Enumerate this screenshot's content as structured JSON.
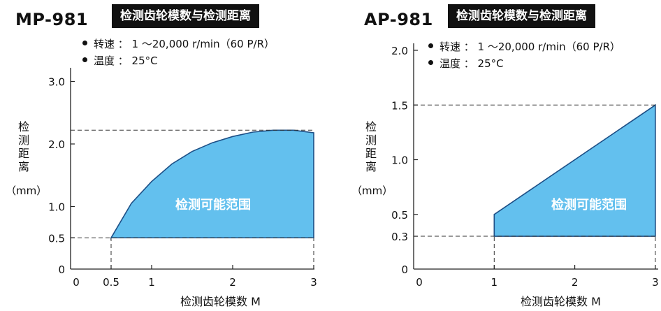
{
  "colors": {
    "fill": "#63c0ee",
    "stroke": "#1d4f86",
    "axis": "#222222",
    "title_bg": "#111111",
    "region_text": "#ffffff"
  },
  "chart_data": [
    {
      "type": "area",
      "model": "MP-981",
      "title": "检测齿轮模数与检测距离",
      "conditions": [
        "转速 ： 1 〜20,000 r/min（60 P/R）",
        "温度 ： 25°C"
      ],
      "ylabel": "检测距离",
      "yunit": "（mm）",
      "xlabel": "检测齿轮模数  M",
      "region_label": "检测可能范围",
      "xlim": [
        0,
        3
      ],
      "ylim": [
        0,
        3.0
      ],
      "x_ticks": [
        0,
        0.5,
        1,
        2,
        3
      ],
      "x_tick_labels": [
        "0",
        "0.5",
        "1",
        "2",
        "3"
      ],
      "y_ticks": [
        0,
        0.5,
        1.0,
        2.0,
        3.0
      ],
      "y_tick_labels": [
        "0",
        "0.5",
        "1.0",
        "2.0",
        "3.0"
      ],
      "region": {
        "x_min": 0.5,
        "x_max": 3,
        "y_min": 0.5,
        "upper": [
          [
            0.5,
            0.5
          ],
          [
            0.75,
            1.05
          ],
          [
            1,
            1.4
          ],
          [
            1.25,
            1.68
          ],
          [
            1.5,
            1.88
          ],
          [
            1.75,
            2.02
          ],
          [
            2,
            2.12
          ],
          [
            2.25,
            2.19
          ],
          [
            2.5,
            2.22
          ],
          [
            2.75,
            2.22
          ],
          [
            3,
            2.18
          ]
        ]
      },
      "dashed_y": [
        0.5,
        2.22
      ],
      "dashed_x": [
        0.5,
        3
      ]
    },
    {
      "type": "area",
      "model": "AP-981",
      "title": "检测齿轮模数与检测距离",
      "conditions": [
        "转速 ： 1 〜20,000 r/min（60 P/R）",
        "温度 ： 25°C"
      ],
      "ylabel": "检测距离",
      "yunit": "（mm）",
      "xlabel": "检测齿轮模数  M",
      "region_label": "检测可能范围",
      "xlim": [
        0,
        3
      ],
      "ylim": [
        0,
        2.0
      ],
      "x_ticks": [
        0,
        1,
        2,
        3
      ],
      "x_tick_labels": [
        "0",
        "1",
        "2",
        "3"
      ],
      "y_ticks": [
        0,
        0.3,
        0.5,
        1.0,
        1.5,
        2.0
      ],
      "y_tick_labels": [
        "0",
        "0.3",
        "0.5",
        "1.0",
        "1.5",
        "2.0"
      ],
      "region": {
        "x_min": 1,
        "x_max": 3,
        "y_min": 0.3,
        "upper": [
          [
            1,
            0.5
          ],
          [
            3,
            1.5
          ]
        ]
      },
      "dashed_y": [
        0.3,
        1.5
      ],
      "dashed_x": [
        1,
        3
      ]
    }
  ]
}
